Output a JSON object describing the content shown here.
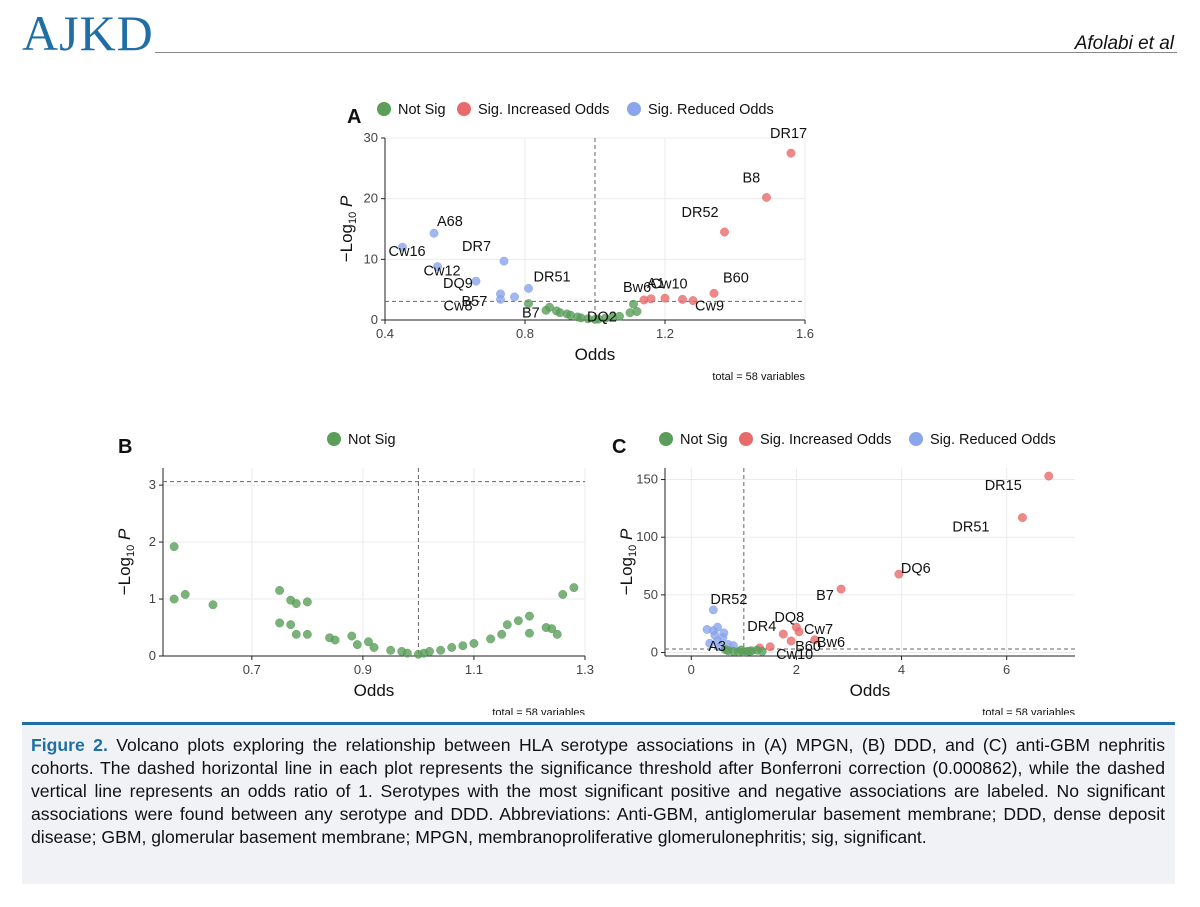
{
  "header": {
    "journal": "AJKD",
    "authors": "Afolabi et al"
  },
  "colors": {
    "not_sig": "#5a9e5a",
    "sig_increased": "#e86b6b",
    "sig_reduced": "#8aa5ea",
    "journal_blue": "#1f6fa6"
  },
  "caption": {
    "label": "Figure 2.",
    "text": " Volcano plots exploring the relationship between HLA serotype associations in (A) MPGN, (B) DDD, and (C) anti-GBM nephritis cohorts. The dashed horizontal line in each plot represents the significance threshold after Bonferroni correction (0.000862), while the dashed vertical line represents an odds ratio of 1. Serotypes with the most significant positive and negative associations are labeled. No significant associations were found between any serotype and DDD. Abbreviations: Anti-GBM, antiglomerular basement membrane; DDD, dense deposit disease; GBM, glomerular basement membrane; MPGN, membranoproliferative glomerulonephritis; sig, significant."
  },
  "chart_data": [
    {
      "panel": "A",
      "type": "scatter",
      "xlabel": "Odds",
      "ylabel": "−Log10 P",
      "xlim": [
        0.4,
        1.6
      ],
      "ylim": [
        0,
        30
      ],
      "xticks": [
        0.4,
        0.8,
        1.2,
        1.6
      ],
      "yticks": [
        0,
        10,
        20,
        30
      ],
      "vline": 1.0,
      "hline": 3.06,
      "legend": [
        "Not Sig",
        "Sig. Increased Odds",
        "Sig. Reduced Odds"
      ],
      "footer": "total = 58 variables",
      "points": [
        {
          "x": 1.56,
          "y": 27.5,
          "g": "inc",
          "label": "DR17"
        },
        {
          "x": 1.49,
          "y": 20.2,
          "g": "inc",
          "label": "B8"
        },
        {
          "x": 1.37,
          "y": 14.5,
          "g": "inc",
          "label": "DR52"
        },
        {
          "x": 1.34,
          "y": 4.4,
          "g": "inc",
          "label": "B60"
        },
        {
          "x": 1.16,
          "y": 3.5,
          "g": "inc",
          "label": "A1"
        },
        {
          "x": 1.25,
          "y": 3.4,
          "g": "inc",
          "label": "Cw10"
        },
        {
          "x": 1.28,
          "y": 3.2,
          "g": "inc",
          "label": "Cw9"
        },
        {
          "x": 1.2,
          "y": 3.6,
          "g": "inc",
          "label": "Bw6"
        },
        {
          "x": 1.14,
          "y": 3.3,
          "g": "inc"
        },
        {
          "x": 0.54,
          "y": 14.3,
          "g": "red",
          "label": "A68"
        },
        {
          "x": 0.45,
          "y": 12.0,
          "g": "red",
          "label": "Cw16"
        },
        {
          "x": 0.55,
          "y": 8.8,
          "g": "red",
          "label": "Cw12"
        },
        {
          "x": 0.74,
          "y": 9.7,
          "g": "red",
          "label": "DR7"
        },
        {
          "x": 0.66,
          "y": 6.4,
          "g": "red",
          "label": "DQ9"
        },
        {
          "x": 0.81,
          "y": 5.2,
          "g": "red",
          "label": "DR51"
        },
        {
          "x": 0.73,
          "y": 4.3,
          "g": "red",
          "label": "B57"
        },
        {
          "x": 0.73,
          "y": 3.4,
          "g": "red",
          "label": "Cw8"
        },
        {
          "x": 0.77,
          "y": 3.8,
          "g": "red"
        },
        {
          "x": 0.81,
          "y": 2.7,
          "g": "ns"
        },
        {
          "x": 0.86,
          "y": 1.6,
          "g": "ns",
          "label": "B7"
        },
        {
          "x": 0.87,
          "y": 2.1,
          "g": "ns"
        },
        {
          "x": 0.89,
          "y": 1.5,
          "g": "ns"
        },
        {
          "x": 0.9,
          "y": 1.2,
          "g": "ns"
        },
        {
          "x": 0.92,
          "y": 1.0,
          "g": "ns"
        },
        {
          "x": 0.93,
          "y": 0.8,
          "g": "ns"
        },
        {
          "x": 0.95,
          "y": 0.5,
          "g": "ns"
        },
        {
          "x": 0.96,
          "y": 0.35,
          "g": "ns"
        },
        {
          "x": 0.98,
          "y": 0.2,
          "g": "ns"
        },
        {
          "x": 1.0,
          "y": 0.1,
          "g": "ns"
        },
        {
          "x": 1.01,
          "y": 0.15,
          "g": "ns"
        },
        {
          "x": 1.03,
          "y": 0.3,
          "g": "ns"
        },
        {
          "x": 1.05,
          "y": 0.5,
          "g": "ns"
        },
        {
          "x": 1.07,
          "y": 0.6,
          "g": "ns"
        },
        {
          "x": 1.1,
          "y": 1.2,
          "g": "ns",
          "label": "DQ2"
        },
        {
          "x": 1.11,
          "y": 2.6,
          "g": "ns"
        },
        {
          "x": 1.12,
          "y": 1.4,
          "g": "ns"
        }
      ]
    },
    {
      "panel": "B",
      "type": "scatter",
      "xlabel": "Odds",
      "ylabel": "−Log10 P",
      "xlim": [
        0.54,
        1.3
      ],
      "ylim": [
        0,
        3.3
      ],
      "xticks": [
        0.7,
        0.9,
        1.1,
        1.3
      ],
      "yticks": [
        0,
        1,
        2,
        3
      ],
      "vline": 1.0,
      "hline": 3.06,
      "legend": [
        "Not Sig"
      ],
      "footer": "total = 58 variables",
      "points": [
        {
          "x": 0.56,
          "y": 1.92,
          "g": "ns"
        },
        {
          "x": 0.56,
          "y": 1.0,
          "g": "ns"
        },
        {
          "x": 0.58,
          "y": 1.08,
          "g": "ns"
        },
        {
          "x": 0.63,
          "y": 0.9,
          "g": "ns"
        },
        {
          "x": 0.75,
          "y": 1.15,
          "g": "ns"
        },
        {
          "x": 0.77,
          "y": 0.98,
          "g": "ns"
        },
        {
          "x": 0.78,
          "y": 0.92,
          "g": "ns"
        },
        {
          "x": 0.8,
          "y": 0.95,
          "g": "ns"
        },
        {
          "x": 0.75,
          "y": 0.58,
          "g": "ns"
        },
        {
          "x": 0.77,
          "y": 0.55,
          "g": "ns"
        },
        {
          "x": 0.78,
          "y": 0.38,
          "g": "ns"
        },
        {
          "x": 0.8,
          "y": 0.38,
          "g": "ns"
        },
        {
          "x": 0.84,
          "y": 0.32,
          "g": "ns"
        },
        {
          "x": 0.85,
          "y": 0.28,
          "g": "ns"
        },
        {
          "x": 0.88,
          "y": 0.35,
          "g": "ns"
        },
        {
          "x": 0.89,
          "y": 0.2,
          "g": "ns"
        },
        {
          "x": 0.91,
          "y": 0.25,
          "g": "ns"
        },
        {
          "x": 0.92,
          "y": 0.15,
          "g": "ns"
        },
        {
          "x": 0.95,
          "y": 0.1,
          "g": "ns"
        },
        {
          "x": 0.97,
          "y": 0.08,
          "g": "ns"
        },
        {
          "x": 0.98,
          "y": 0.05,
          "g": "ns"
        },
        {
          "x": 1.0,
          "y": 0.03,
          "g": "ns"
        },
        {
          "x": 1.01,
          "y": 0.05,
          "g": "ns"
        },
        {
          "x": 1.02,
          "y": 0.08,
          "g": "ns"
        },
        {
          "x": 1.04,
          "y": 0.1,
          "g": "ns"
        },
        {
          "x": 1.06,
          "y": 0.15,
          "g": "ns"
        },
        {
          "x": 1.08,
          "y": 0.18,
          "g": "ns"
        },
        {
          "x": 1.1,
          "y": 0.22,
          "g": "ns"
        },
        {
          "x": 1.13,
          "y": 0.3,
          "g": "ns"
        },
        {
          "x": 1.15,
          "y": 0.38,
          "g": "ns"
        },
        {
          "x": 1.16,
          "y": 0.55,
          "g": "ns"
        },
        {
          "x": 1.18,
          "y": 0.62,
          "g": "ns"
        },
        {
          "x": 1.2,
          "y": 0.7,
          "g": "ns"
        },
        {
          "x": 1.2,
          "y": 0.4,
          "g": "ns"
        },
        {
          "x": 1.23,
          "y": 0.5,
          "g": "ns"
        },
        {
          "x": 1.24,
          "y": 0.48,
          "g": "ns"
        },
        {
          "x": 1.25,
          "y": 0.38,
          "g": "ns"
        },
        {
          "x": 1.26,
          "y": 1.08,
          "g": "ns"
        },
        {
          "x": 1.28,
          "y": 1.2,
          "g": "ns"
        }
      ]
    },
    {
      "panel": "C",
      "type": "scatter",
      "xlabel": "Odds",
      "ylabel": "−Log10 P",
      "xlim": [
        -0.5,
        7.3
      ],
      "ylim": [
        -3,
        160
      ],
      "xticks": [
        0,
        2,
        4,
        6
      ],
      "yticks": [
        0,
        50,
        100,
        150
      ],
      "vline": 1.0,
      "hline": 3.06,
      "legend": [
        "Not Sig",
        "Sig. Increased Odds",
        "Sig. Reduced Odds"
      ],
      "footer": "total = 58 variables",
      "points": [
        {
          "x": 6.8,
          "y": 153,
          "g": "inc",
          "label": "DR15"
        },
        {
          "x": 6.3,
          "y": 117,
          "g": "inc",
          "label": "DR51"
        },
        {
          "x": 3.95,
          "y": 68,
          "g": "inc",
          "label": "DQ6"
        },
        {
          "x": 2.85,
          "y": 55,
          "g": "inc",
          "label": "B7"
        },
        {
          "x": 2.0,
          "y": 22,
          "g": "inc",
          "label": "DQ8"
        },
        {
          "x": 1.75,
          "y": 16,
          "g": "inc",
          "label": "DR4"
        },
        {
          "x": 2.05,
          "y": 18,
          "g": "inc",
          "label": "Cw7"
        },
        {
          "x": 2.35,
          "y": 11,
          "g": "inc",
          "label": "Bw6"
        },
        {
          "x": 1.5,
          "y": 5,
          "g": "inc",
          "label": "Cw10"
        },
        {
          "x": 1.9,
          "y": 10,
          "g": "inc",
          "label": "B60"
        },
        {
          "x": 1.3,
          "y": 4,
          "g": "inc"
        },
        {
          "x": 0.42,
          "y": 37,
          "g": "red",
          "label": "DR52"
        },
        {
          "x": 0.55,
          "y": 5,
          "g": "red",
          "label": "A3"
        },
        {
          "x": 0.3,
          "y": 20,
          "g": "red"
        },
        {
          "x": 0.42,
          "y": 19,
          "g": "red"
        },
        {
          "x": 0.5,
          "y": 22,
          "g": "red"
        },
        {
          "x": 0.45,
          "y": 15,
          "g": "red"
        },
        {
          "x": 0.6,
          "y": 13,
          "g": "red"
        },
        {
          "x": 0.35,
          "y": 8,
          "g": "red"
        },
        {
          "x": 0.5,
          "y": 10,
          "g": "red"
        },
        {
          "x": 0.7,
          "y": 7,
          "g": "red"
        },
        {
          "x": 0.62,
          "y": 17,
          "g": "red"
        },
        {
          "x": 0.8,
          "y": 6,
          "g": "red"
        },
        {
          "x": 0.7,
          "y": 1.5,
          "g": "ns"
        },
        {
          "x": 0.8,
          "y": 1,
          "g": "ns"
        },
        {
          "x": 0.9,
          "y": 0.8,
          "g": "ns"
        },
        {
          "x": 1.0,
          "y": 0.5,
          "g": "ns"
        },
        {
          "x": 1.05,
          "y": 0.8,
          "g": "ns"
        },
        {
          "x": 1.1,
          "y": 1.2,
          "g": "ns"
        },
        {
          "x": 1.15,
          "y": 1.5,
          "g": "ns"
        },
        {
          "x": 1.25,
          "y": 2,
          "g": "ns"
        },
        {
          "x": 0.95,
          "y": 2.2,
          "g": "ns"
        },
        {
          "x": 0.65,
          "y": 2.5,
          "g": "ns"
        },
        {
          "x": 1.35,
          "y": 1,
          "g": "ns"
        }
      ]
    }
  ]
}
